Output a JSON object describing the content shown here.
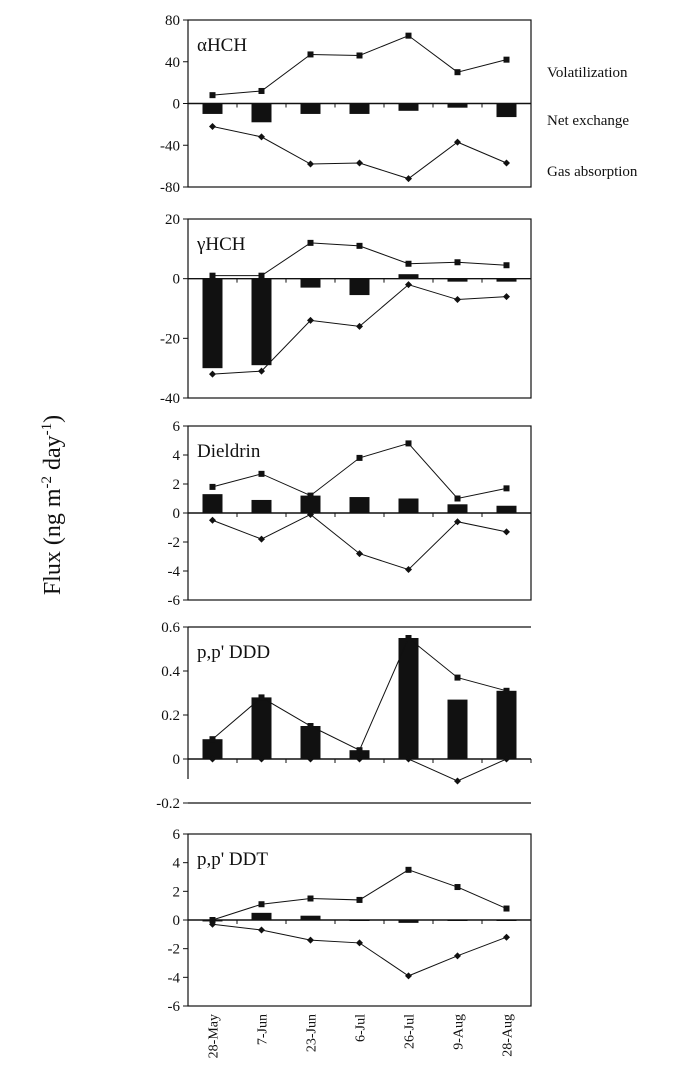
{
  "ylabel": "Flux (ng m-2 day-1)",
  "ylabel_main": "Flux (ng m",
  "ylabel_sup1": "-2",
  "ylabel_mid": " day",
  "ylabel_sup2": "-1",
  "ylabel_end": ")",
  "legend": {
    "volatilization": "Volatilization",
    "net_exchange": "Net exchange",
    "gas_absorption": "Gas absorption"
  },
  "chart_data": [
    {
      "type": "bar+line",
      "title": "αHCH",
      "categories": [
        "28-May",
        "7-Jun",
        "23-Jun",
        "6-Jul",
        "26-Jul",
        "9-Aug",
        "28-Aug"
      ],
      "ylim": [
        -80,
        80
      ],
      "yticks": [
        80,
        40,
        0,
        -40,
        -80
      ],
      "tick_labels": [
        "80",
        "40",
        "0",
        "-40",
        "-80"
      ],
      "series": [
        {
          "name": "Volatilization",
          "kind": "line-square",
          "values": [
            8,
            12,
            47,
            46,
            65,
            30,
            42
          ]
        },
        {
          "name": "Net exchange",
          "kind": "bar",
          "values": [
            -10,
            -18,
            -10,
            -10,
            -7,
            -4,
            -13
          ]
        },
        {
          "name": "Gas absorption",
          "kind": "line-diamond",
          "values": [
            -22,
            -32,
            -58,
            -57,
            -72,
            -37,
            -57
          ]
        }
      ]
    },
    {
      "type": "bar+line",
      "title": "γHCH",
      "categories": [
        "28-May",
        "7-Jun",
        "23-Jun",
        "6-Jul",
        "26-Jul",
        "9-Aug",
        "28-Aug"
      ],
      "ylim": [
        -40,
        20
      ],
      "yticks": [
        20,
        0,
        -20,
        -40
      ],
      "tick_labels": [
        "20",
        "0",
        "-20",
        "-40"
      ],
      "series": [
        {
          "name": "Volatilization",
          "kind": "line-square",
          "values": [
            1,
            1,
            12,
            11,
            5,
            5.5,
            4.5
          ]
        },
        {
          "name": "Net exchange",
          "kind": "bar",
          "values": [
            -30,
            -29,
            -3,
            -5.5,
            1.5,
            -1,
            -1
          ]
        },
        {
          "name": "Gas absorption",
          "kind": "line-diamond",
          "values": [
            -32,
            -31,
            -14,
            -16,
            -2,
            -7,
            -6
          ]
        }
      ]
    },
    {
      "type": "bar+line",
      "title": "Dieldrin",
      "categories": [
        "28-May",
        "7-Jun",
        "23-Jun",
        "6-Jul",
        "26-Jul",
        "9-Aug",
        "28-Aug"
      ],
      "ylim": [
        -6,
        6
      ],
      "yticks": [
        6,
        4,
        2,
        0,
        -2,
        -4,
        -6
      ],
      "tick_labels": [
        "6",
        "4",
        "2",
        "0",
        "-2",
        "-4",
        "-6"
      ],
      "series": [
        {
          "name": "Volatilization",
          "kind": "line-square",
          "values": [
            1.8,
            2.7,
            1.2,
            3.8,
            4.8,
            1.0,
            1.7
          ]
        },
        {
          "name": "Net exchange",
          "kind": "bar",
          "values": [
            1.3,
            0.9,
            1.2,
            1.1,
            1.0,
            0.6,
            0.5
          ]
        },
        {
          "name": "Gas absorption",
          "kind": "line-diamond",
          "values": [
            -0.5,
            -1.8,
            -0.1,
            -2.8,
            -3.9,
            -0.6,
            -1.3
          ]
        }
      ]
    },
    {
      "type": "bar+line",
      "title": "p,p' DDD",
      "categories": [
        "28-May",
        "7-Jun",
        "23-Jun",
        "6-Jul",
        "26-Jul",
        "9-Aug",
        "28-Aug"
      ],
      "ylim": [
        -0.2,
        0.6
      ],
      "yticks": [
        0.6,
        0.4,
        0.2,
        0,
        -0.2
      ],
      "tick_labels": [
        "0.6",
        "0.4",
        "0.2",
        "0",
        "-0.2"
      ],
      "series": [
        {
          "name": "Volatilization",
          "kind": "line-square",
          "values": [
            0.09,
            0.28,
            0.15,
            0.04,
            0.55,
            0.37,
            0.31
          ]
        },
        {
          "name": "Net exchange",
          "kind": "bar",
          "values": [
            0.09,
            0.28,
            0.15,
            0.04,
            0.55,
            0.27,
            0.31
          ]
        },
        {
          "name": "Gas absorption",
          "kind": "line-diamond",
          "values": [
            0,
            0,
            0,
            0,
            0,
            -0.1,
            0
          ]
        }
      ]
    },
    {
      "type": "bar+line",
      "title": "p,p' DDT",
      "categories": [
        "28-May",
        "7-Jun",
        "23-Jun",
        "6-Jul",
        "26-Jul",
        "9-Aug",
        "28-Aug"
      ],
      "ylim": [
        -6,
        6
      ],
      "yticks": [
        6,
        4,
        2,
        0,
        -2,
        -4,
        -6
      ],
      "tick_labels": [
        "6",
        "4",
        "2",
        "0",
        "-2",
        "-4",
        "-6"
      ],
      "series": [
        {
          "name": "Volatilization",
          "kind": "line-square",
          "values": [
            0,
            1.1,
            1.5,
            1.4,
            3.5,
            2.3,
            0.8
          ]
        },
        {
          "name": "Net exchange",
          "kind": "bar",
          "values": [
            -0.1,
            0.5,
            0.3,
            0,
            -0.2,
            0,
            0
          ]
        },
        {
          "name": "Gas absorption",
          "kind": "line-diamond",
          "values": [
            -0.3,
            -0.7,
            -1.4,
            -1.6,
            -3.9,
            -2.5,
            -1.2
          ]
        }
      ]
    }
  ]
}
